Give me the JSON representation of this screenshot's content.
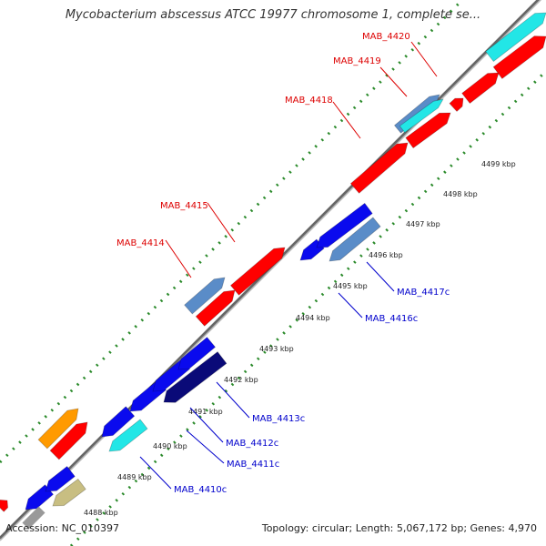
{
  "title": "Mycobacterium abscessus ATCC 19977 chromosome 1, complete se...",
  "footer": {
    "accession": "Accession: NC_010397",
    "summary": "Topology: circular; Length: 5,067,172 bp; Genes: 4,970"
  },
  "colors": {
    "background": "#ffffff",
    "backbone": "#888888",
    "tick": "#2a8a2a",
    "label_forward": "#dd0000",
    "label_reverse": "#0000cc",
    "red": "#ff0000",
    "blue": "#0a0aee",
    "navy": "#0a0a78",
    "steelblue": "#5a8cc8",
    "cyan": "#22e6e6",
    "orange": "#ff9a00",
    "khaki": "#c8be82",
    "gray": "#999999"
  },
  "scale_labels": [
    "4488 kbp",
    "4489 kbp",
    "4490 kbp",
    "4491 kbp",
    "4492 kbp",
    "4493 kbp",
    "4494 kbp",
    "4495 kbp",
    "4496 kbp",
    "4497 kbp",
    "4498 kbp",
    "4499 kbp"
  ],
  "genes": [
    {
      "label": "MAB_4414",
      "strand": "forward"
    },
    {
      "label": "MAB_4415",
      "strand": "forward"
    },
    {
      "label": "MAB_4418",
      "strand": "forward"
    },
    {
      "label": "MAB_4419",
      "strand": "forward"
    },
    {
      "label": "MAB_4420",
      "strand": "forward"
    },
    {
      "label": "MAB_4410c",
      "strand": "reverse"
    },
    {
      "label": "MAB_4411c",
      "strand": "reverse"
    },
    {
      "label": "MAB_4412c",
      "strand": "reverse"
    },
    {
      "label": "MAB_4413c",
      "strand": "reverse"
    },
    {
      "label": "MAB_4416c",
      "strand": "reverse"
    },
    {
      "label": "MAB_4417c",
      "strand": "reverse"
    }
  ]
}
